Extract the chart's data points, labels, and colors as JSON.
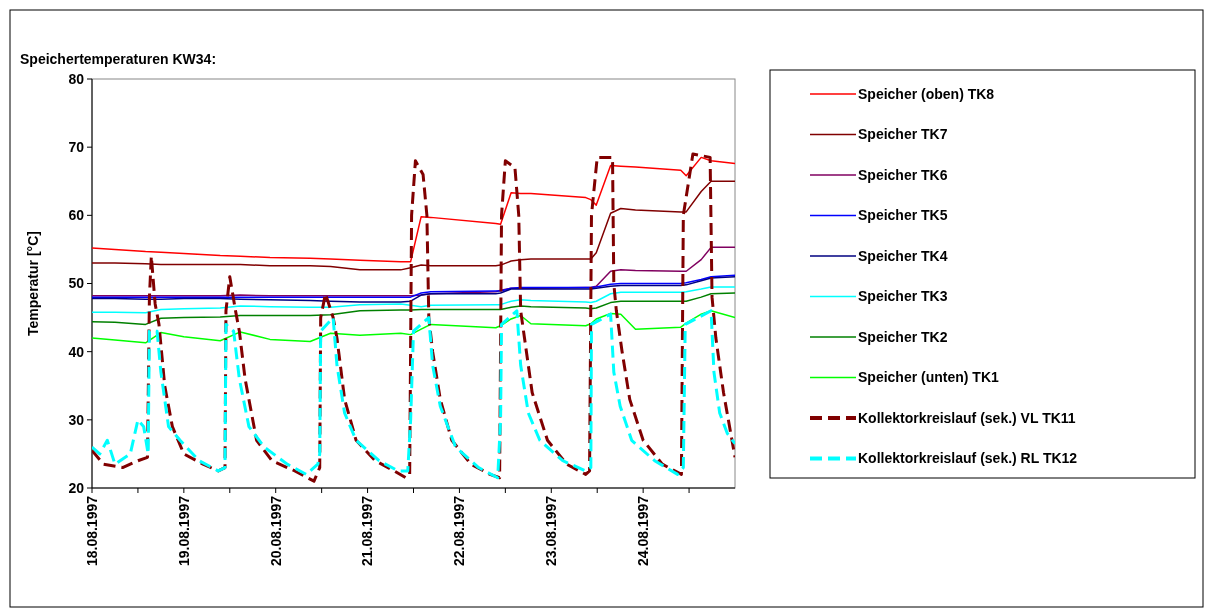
{
  "chart_data": {
    "type": "line",
    "title": "Speichertemperaturen KW34:",
    "ylabel": "Temperatur [°C]",
    "xlim": [
      "1997-08-18",
      "1997-08-25"
    ],
    "xticks": [
      {
        "value": "1997-08-18",
        "label": "18.08.1997"
      },
      {
        "value": "1997-08-18T12:00",
        "label": null
      },
      {
        "value": "1997-08-19",
        "label": "19.08.1997"
      },
      {
        "value": "1997-08-19T12:00",
        "label": null
      },
      {
        "value": "1997-08-20",
        "label": "20.08.1997"
      },
      {
        "value": "1997-08-20T12:00",
        "label": null
      },
      {
        "value": "1997-08-21",
        "label": "21.08.1997"
      },
      {
        "value": "1997-08-21T12:00",
        "label": null
      },
      {
        "value": "1997-08-22",
        "label": "22.08.1997"
      },
      {
        "value": "1997-08-22T12:00",
        "label": null
      },
      {
        "value": "1997-08-23",
        "label": "23.08.1997"
      },
      {
        "value": "1997-08-23T12:00",
        "label": null
      },
      {
        "value": "1997-08-24",
        "label": "24.08.1997"
      },
      {
        "value": "1997-08-24T12:00",
        "label": null
      }
    ],
    "ylim": [
      20,
      80
    ],
    "yticks": [
      20,
      30,
      40,
      50,
      60,
      70,
      80
    ],
    "grid": false,
    "legend": "right",
    "marker": "none",
    "x": [
      "1997-08-18T00:00",
      "1997-08-18T06:00",
      "1997-08-18T14:00",
      "1997-08-18T18:00",
      "1997-08-19T00:00",
      "1997-08-19T09:30",
      "1997-08-19T14:45",
      "1997-08-19T22:30",
      "1997-08-20T09:00",
      "1997-08-20T14:20",
      "1997-08-20T22:00",
      "1997-08-21T08:40",
      "1997-08-21T11:15",
      "1997-08-21T14:00",
      "1997-08-21T16:30",
      "1997-08-22T09:30",
      "1997-08-22T10:45",
      "1997-08-22T13:30",
      "1997-08-22T16:00",
      "1997-08-22T18:40",
      "1997-08-23T09:00",
      "1997-08-23T10:20",
      "1997-08-23T11:45",
      "1997-08-23T15:30",
      "1997-08-23T18:10",
      "1997-08-23T22:00",
      "1997-08-24T09:50",
      "1997-08-24T11:15",
      "1997-08-24T15:10",
      "1997-08-24T17:45",
      "1997-08-25T00:00"
    ],
    "series": [
      {
        "name": "Speicher (oben) TK8",
        "color": "#ff0000",
        "line_style": "solid",
        "values": [
          55.2,
          55,
          54.7,
          54.6,
          54.4,
          54.1,
          54,
          53.8,
          53.7,
          53.6,
          53.4,
          53.2,
          53.2,
          59.8,
          59.7,
          58.8,
          58.7,
          63.3,
          63.2,
          63.2,
          62.6,
          62.3,
          61.5,
          67.3,
          67.2,
          67.1,
          66.6,
          65.8,
          68.5,
          68,
          67.6
        ]
      },
      {
        "name": "Speicher TK7",
        "color": "#800000",
        "line_style": "solid",
        "values": [
          53,
          53,
          52.9,
          52.8,
          52.8,
          52.8,
          52.8,
          52.6,
          52.6,
          52.5,
          52,
          52,
          52.3,
          52.7,
          52.6,
          52.6,
          52.7,
          53.3,
          53.5,
          53.6,
          53.6,
          53.6,
          54.5,
          60.3,
          61,
          60.8,
          60.5,
          60.5,
          63.5,
          65,
          65
        ]
      },
      {
        "name": "Speicher TK6",
        "color": "#800060",
        "line_style": "solid",
        "values": [
          48.2,
          48.2,
          48.2,
          48.2,
          48.2,
          48.2,
          48.3,
          48.2,
          48.2,
          48.2,
          48.2,
          48.2,
          48.2,
          48.3,
          48.5,
          48.8,
          49,
          49.3,
          49.3,
          49.3,
          49.4,
          49.4,
          49.6,
          51.8,
          52,
          51.9,
          51.8,
          51.8,
          53.5,
          55.3,
          55.3
        ]
      },
      {
        "name": "Speicher TK5",
        "color": "#0000ff",
        "line_style": "solid",
        "values": [
          48,
          48,
          48,
          48,
          48,
          48,
          48,
          48,
          48,
          48,
          48,
          48,
          48,
          48.6,
          48.8,
          48.9,
          48.9,
          49.3,
          49.4,
          49.4,
          49.4,
          49.4,
          49.5,
          49.9,
          50,
          50,
          50,
          50.1,
          50.6,
          51,
          51.2
        ]
      },
      {
        "name": "Speicher TK4",
        "color": "#000080",
        "line_style": "solid",
        "values": [
          47.8,
          47.8,
          47.7,
          47.7,
          47.8,
          47.8,
          47.7,
          47.6,
          47.5,
          47.4,
          47.3,
          47.3,
          47.4,
          48.3,
          48.5,
          48.5,
          48.6,
          49.2,
          49.2,
          49.2,
          49.2,
          49.2,
          49.3,
          49.6,
          49.7,
          49.7,
          49.7,
          49.8,
          50.4,
          50.8,
          51
        ]
      },
      {
        "name": "Speicher TK3",
        "color": "#00ffff",
        "line_style": "solid",
        "values": [
          45.8,
          45.8,
          45.7,
          46.2,
          46.3,
          46.4,
          46.7,
          46.6,
          46.5,
          46.5,
          46.9,
          47,
          46.8,
          46.6,
          46.8,
          46.9,
          46.9,
          47.4,
          47.6,
          47.5,
          47.3,
          47.2,
          47.4,
          48.5,
          48.7,
          48.7,
          48.7,
          48.8,
          49.2,
          49.5,
          49.5
        ]
      },
      {
        "name": "Speicher TK2",
        "color": "#008000",
        "line_style": "solid",
        "values": [
          44.4,
          44.3,
          44,
          44.9,
          45,
          45.1,
          45.3,
          45.3,
          45.3,
          45.4,
          46,
          46.1,
          46.1,
          46.2,
          46.2,
          46.2,
          46.2,
          46.5,
          46.7,
          46.6,
          46.4,
          46.3,
          46.4,
          47.2,
          47.4,
          47.4,
          47.4,
          47.4,
          48,
          48.5,
          48.6
        ]
      },
      {
        "name": "Speicher (unten) TK1",
        "color": "#00ff00",
        "line_style": "solid",
        "values": [
          42,
          41.7,
          41.3,
          42.8,
          42.2,
          41.6,
          42.9,
          41.8,
          41.5,
          42.7,
          42.4,
          42.7,
          42.5,
          43.3,
          44,
          43.5,
          43.8,
          44.8,
          45.3,
          44.1,
          43.8,
          44.1,
          44.8,
          45.6,
          45.5,
          43.3,
          43.6,
          44.2,
          45.5,
          46,
          45
        ]
      },
      {
        "name": "Kollektorkreislauf (sek.) VL TK11",
        "color": "#800000",
        "line_style": "dashed",
        "x": [
          "1997-08-18T00:00",
          "1997-08-18T03:00",
          "1997-08-18T08:00",
          "1997-08-18T12:00",
          "1997-08-18T14:30",
          "1997-08-18T15:00",
          "1997-08-18T15:30",
          "1997-08-18T16:30",
          "1997-08-18T17:30",
          "1997-08-18T19:00",
          "1997-08-18T21:00",
          "1997-08-19T00:00",
          "1997-08-19T05:00",
          "1997-08-19T09:00",
          "1997-08-19T10:45",
          "1997-08-19T11:00",
          "1997-08-19T12:00",
          "1997-08-19T13:30",
          "1997-08-19T14:30",
          "1997-08-19T16:00",
          "1997-08-19T19:00",
          "1997-08-19T23:00",
          "1997-08-20T05:00",
          "1997-08-20T10:00",
          "1997-08-20T11:30",
          "1997-08-20T11:45",
          "1997-08-20T13:00",
          "1997-08-20T15:00",
          "1997-08-20T16:00",
          "1997-08-20T18:00",
          "1997-08-20T21:00",
          "1997-08-21T02:00",
          "1997-08-21T07:00",
          "1997-08-21T10:00",
          "1997-08-21T11:00",
          "1997-08-21T11:30",
          "1997-08-21T12:30",
          "1997-08-21T14:30",
          "1997-08-21T15:30",
          "1997-08-21T16:00",
          "1997-08-21T17:00",
          "1997-08-21T19:00",
          "1997-08-21T22:00",
          "1997-08-22T03:00",
          "1997-08-22T08:00",
          "1997-08-22T10:30",
          "1997-08-22T11:00",
          "1997-08-22T12:00",
          "1997-08-22T14:30",
          "1997-08-22T15:30",
          "1997-08-22T16:00",
          "1997-08-22T17:00",
          "1997-08-22T19:00",
          "1997-08-22T23:00",
          "1997-08-23T04:00",
          "1997-08-23T09:00",
          "1997-08-23T10:00",
          "1997-08-23T10:30",
          "1997-08-23T12:00",
          "1997-08-23T16:00",
          "1997-08-23T16:20",
          "1997-08-23T17:00",
          "1997-08-23T18:30",
          "1997-08-23T20:30",
          "1997-08-24T00:00",
          "1997-08-24T05:00",
          "1997-08-24T10:00",
          "1997-08-24T10:30",
          "1997-08-24T13:00",
          "1997-08-24T17:30",
          "1997-08-24T18:00",
          "1997-08-24T19:00",
          "1997-08-24T21:00",
          "1997-08-25T00:00"
        ],
        "values": [
          25.5,
          23.5,
          23,
          24,
          24.5,
          48,
          54,
          47,
          44,
          35,
          29,
          25,
          23.5,
          22.5,
          23,
          46,
          51,
          46,
          43,
          36,
          27,
          24,
          22.5,
          21,
          23,
          45,
          48.5,
          45,
          42,
          33,
          27,
          24,
          22.5,
          21.5,
          22,
          60,
          68,
          66,
          60,
          45,
          40,
          33,
          27,
          23.5,
          22,
          21.5,
          60,
          68,
          67,
          60,
          46,
          42,
          34,
          27,
          23.5,
          22,
          22.5,
          60,
          68.5,
          68.5,
          50,
          46,
          40,
          33,
          27,
          23.5,
          22,
          60,
          69,
          68.5,
          48,
          42,
          34,
          24.5
        ]
      },
      {
        "name": "Kollektorkreislauf (sek.) RL TK12",
        "color": "#00ffff",
        "line_style": "dashed",
        "x": [
          "1997-08-18T00:00",
          "1997-08-18T02:00",
          "1997-08-18T04:00",
          "1997-08-18T06:00",
          "1997-08-18T10:00",
          "1997-08-18T12:00",
          "1997-08-18T13:30",
          "1997-08-18T14:40",
          "1997-08-18T15:00",
          "1997-08-18T17:00",
          "1997-08-18T18:00",
          "1997-08-18T20:00",
          "1997-08-18T23:00",
          "1997-08-19T04:00",
          "1997-08-19T09:00",
          "1997-08-19T10:45",
          "1997-08-19T11:00",
          "1997-08-19T13:00",
          "1997-08-19T14:30",
          "1997-08-19T17:00",
          "1997-08-19T21:00",
          "1997-08-20T03:00",
          "1997-08-20T08:00",
          "1997-08-20T11:00",
          "1997-08-20T11:30",
          "1997-08-20T11:45",
          "1997-08-20T15:00",
          "1997-08-20T16:00",
          "1997-08-20T18:00",
          "1997-08-20T21:00",
          "1997-08-21T03:00",
          "1997-08-21T08:00",
          "1997-08-21T10:30",
          "1997-08-21T11:15",
          "1997-08-21T12:00",
          "1997-08-21T16:00",
          "1997-08-21T17:00",
          "1997-08-21T19:00",
          "1997-08-21T23:00",
          "1997-08-22T05:00",
          "1997-08-22T10:00",
          "1997-08-22T10:45",
          "1997-08-22T11:00",
          "1997-08-22T15:00",
          "1997-08-22T16:00",
          "1997-08-22T18:00",
          "1997-08-22T21:00",
          "1997-08-23T03:00",
          "1997-08-23T09:00",
          "1997-08-23T10:20",
          "1997-08-23T10:30",
          "1997-08-23T15:30",
          "1997-08-23T16:20",
          "1997-08-23T18:00",
          "1997-08-23T21:00",
          "1997-08-24T03:00",
          "1997-08-24T09:00",
          "1997-08-24T10:30",
          "1997-08-24T11:00",
          "1997-08-24T17:45",
          "1997-08-24T18:30",
          "1997-08-24T20:00",
          "1997-08-24T22:00",
          "1997-08-25T00:00"
        ],
        "values": [
          26,
          25,
          27,
          23.5,
          25,
          30,
          29,
          25,
          43,
          43,
          37,
          29,
          27,
          24,
          22.5,
          23,
          44,
          43,
          36,
          29,
          26,
          23.5,
          22,
          23.5,
          25,
          43,
          45,
          38,
          31,
          27,
          24,
          22.5,
          22.5,
          30,
          43,
          45,
          38,
          32,
          26,
          23,
          21.5,
          30,
          44,
          46,
          38,
          31,
          27,
          24,
          22.5,
          23,
          44,
          45.5,
          37,
          32,
          27,
          24,
          22,
          23,
          44,
          46,
          37,
          31,
          28,
          26.5
        ]
      }
    ]
  }
}
